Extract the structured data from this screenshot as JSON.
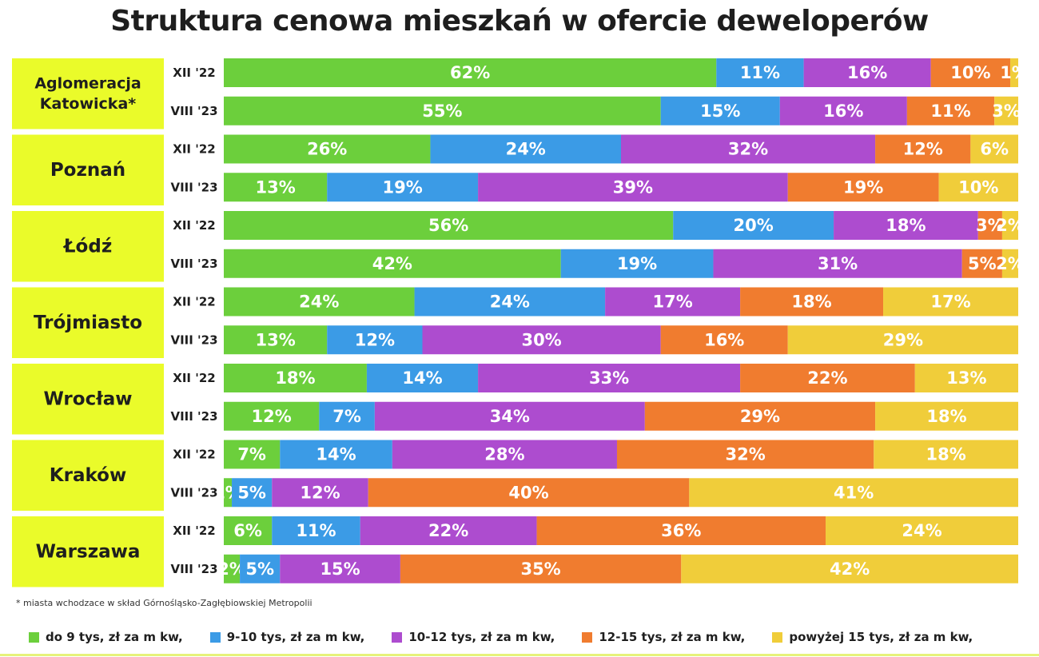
{
  "chart_data": {
    "type": "bar",
    "stacked": true,
    "orientation": "horizontal",
    "title": "Struktura cenowa mieszkań w ofercie deweloperów",
    "footnote": "* miasta wchodzace w skład Górnośląsko-Zagłębiowskiej Metropolii",
    "categories": [
      "do 9 tys, zł za m kw,",
      "9-10 tys, zł za m kw,",
      "10-12 tys, zł za m kw,",
      "12-15 tys, zł za m kw,",
      "powyżej 15 tys, zł za m kw,"
    ],
    "colors": [
      "#6ccf3c",
      "#3b9be6",
      "#ad4ccf",
      "#f07c2f",
      "#f0cd3a"
    ],
    "accent_color": "#eafb2a",
    "cities": [
      {
        "name": [
          "Aglomeracja",
          "Katowicka*"
        ],
        "rows": [
          {
            "period": "XII '22",
            "values": [
              62,
              11,
              16,
              10,
              1
            ]
          },
          {
            "period": "VIII '23",
            "values": [
              55,
              15,
              16,
              11,
              3
            ]
          }
        ]
      },
      {
        "name": [
          "Poznań"
        ],
        "rows": [
          {
            "period": "XII '22",
            "values": [
              26,
              24,
              32,
              12,
              6
            ]
          },
          {
            "period": "VIII '23",
            "values": [
              13,
              19,
              39,
              19,
              10
            ]
          }
        ]
      },
      {
        "name": [
          "Łódź"
        ],
        "rows": [
          {
            "period": "XII '22",
            "values": [
              56,
              20,
              18,
              3,
              2
            ]
          },
          {
            "period": "VIII '23",
            "values": [
              42,
              19,
              31,
              5,
              2
            ]
          }
        ]
      },
      {
        "name": [
          "Trójmiasto"
        ],
        "rows": [
          {
            "period": "XII '22",
            "values": [
              24,
              24,
              17,
              18,
              17
            ]
          },
          {
            "period": "VIII '23",
            "values": [
              13,
              12,
              30,
              16,
              29
            ]
          }
        ]
      },
      {
        "name": [
          "Wrocław"
        ],
        "rows": [
          {
            "period": "XII '22",
            "values": [
              18,
              14,
              33,
              22,
              13
            ]
          },
          {
            "period": "VIII '23",
            "values": [
              12,
              7,
              34,
              29,
              18
            ]
          }
        ]
      },
      {
        "name": [
          "Kraków"
        ],
        "rows": [
          {
            "period": "XII '22",
            "values": [
              7,
              14,
              28,
              32,
              18
            ]
          },
          {
            "period": "VIII '23",
            "values": [
              1,
              5,
              12,
              40,
              41
            ]
          }
        ]
      },
      {
        "name": [
          "Warszawa"
        ],
        "rows": [
          {
            "period": "XII '22",
            "values": [
              6,
              11,
              22,
              36,
              24
            ]
          },
          {
            "period": "VIII '23",
            "values": [
              2,
              5,
              15,
              35,
              42
            ]
          }
        ]
      }
    ]
  }
}
